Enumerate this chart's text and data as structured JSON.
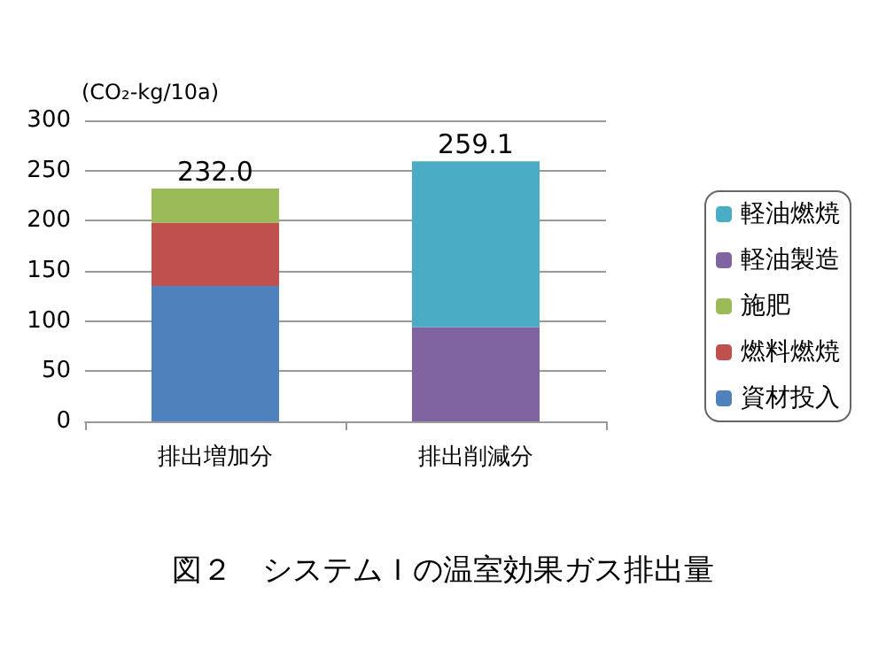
{
  "chart_data": {
    "type": "bar",
    "title": "図２　システムＩの温室効果ガス排出量",
    "ylabel": "(CO₂-kg/10a)",
    "categories": [
      "排出増加分",
      "排出削減分"
    ],
    "stacked": true,
    "series": [
      {
        "name": "資材投入",
        "color": "#4f81bd",
        "values": [
          135,
          null
        ]
      },
      {
        "name": "燃料燃焼",
        "color": "#c0504d",
        "values": [
          63,
          null
        ]
      },
      {
        "name": "施肥",
        "color": "#9bbb59",
        "values": [
          34,
          null
        ]
      },
      {
        "name": "軽油製造",
        "color": "#8064a2",
        "values": [
          null,
          94
        ]
      },
      {
        "name": "軽油燃焼",
        "color": "#4bacc6",
        "values": [
          null,
          165.1
        ]
      }
    ],
    "totals": [
      "232.0",
      "259.1"
    ],
    "ylim": [
      0,
      300
    ],
    "yticks": [
      0,
      50,
      100,
      150,
      200,
      250,
      300
    ],
    "grid": "y",
    "legend": "right"
  }
}
